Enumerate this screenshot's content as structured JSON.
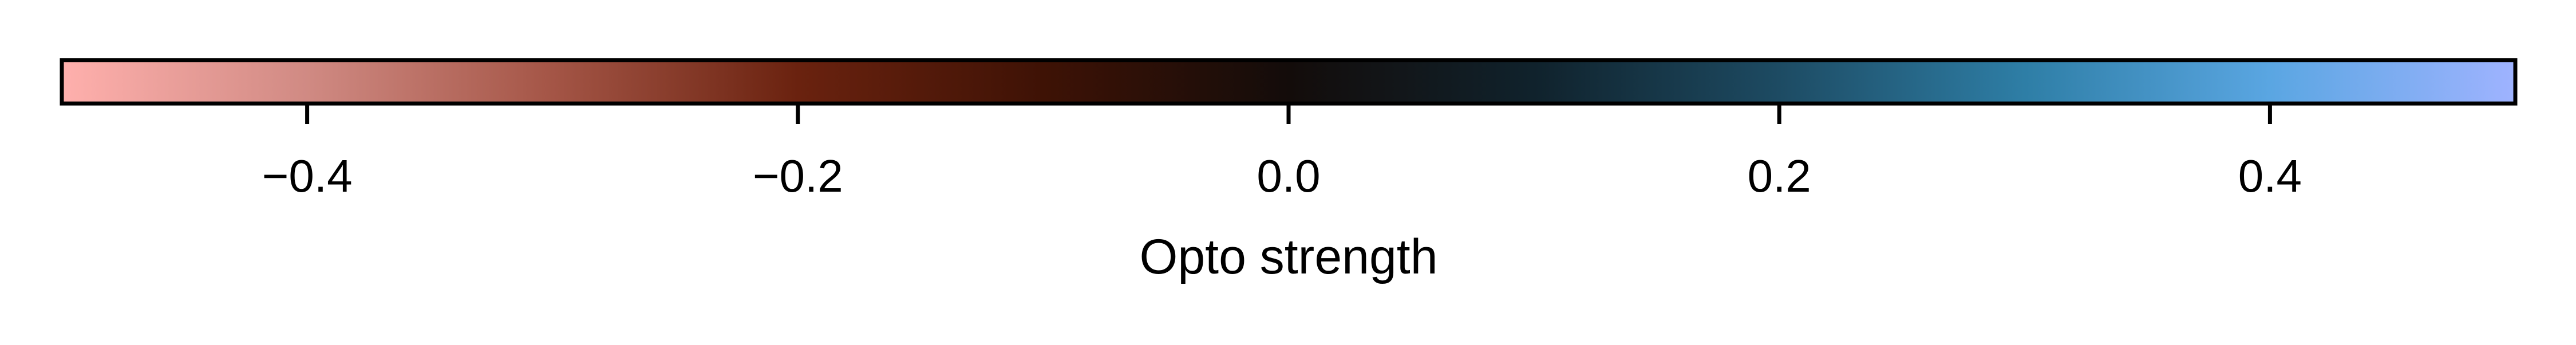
{
  "chart_data": {
    "type": "colorbar",
    "orientation": "horizontal",
    "xlabel": "Opto strength",
    "xlim": [
      -0.5,
      0.5
    ],
    "ticks": [
      -0.4,
      -0.2,
      0.0,
      0.2,
      0.4
    ],
    "tick_labels": [
      "−0.4",
      "−0.2",
      "0.0",
      "0.2",
      "0.4"
    ],
    "colormap": {
      "stops": [
        {
          "value": -0.5,
          "color": "#ffb0ad"
        },
        {
          "value": -0.4,
          "color": "#d08a83"
        },
        {
          "value": -0.3,
          "color": "#a45546"
        },
        {
          "value": -0.2,
          "color": "#6a220f"
        },
        {
          "value": -0.1,
          "color": "#3e1205"
        },
        {
          "value": 0.0,
          "color": "#130c0a"
        },
        {
          "value": 0.1,
          "color": "#10222c"
        },
        {
          "value": 0.2,
          "color": "#1d4b63"
        },
        {
          "value": 0.3,
          "color": "#2e7ea6"
        },
        {
          "value": 0.4,
          "color": "#5aa6e2"
        },
        {
          "value": 0.5,
          "color": "#9fb3ff"
        }
      ]
    }
  }
}
